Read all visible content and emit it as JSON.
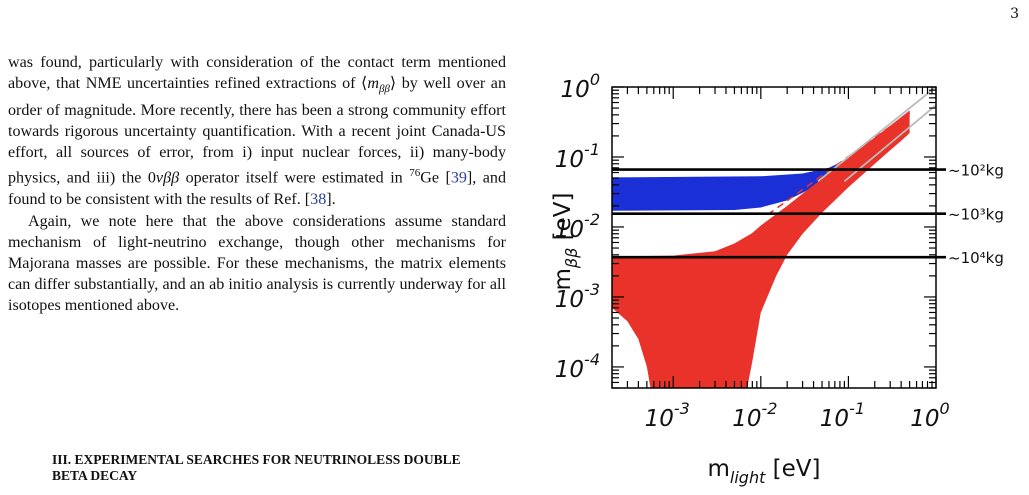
{
  "page_number": "3",
  "paragraphs": [
    {
      "segments": [
        {
          "t": "was found, particularly with consideration of the contact term mentioned above, that NME uncertainties refined extractions of ⟨"
        },
        {
          "t": "m",
          "i": true
        },
        {
          "t": "ββ",
          "sub": true,
          "i": true
        },
        {
          "t": "⟩ by well over an order of magnitude. More recently, there has been a strong community effort towards rigorous uncertainty quantification. With a recent joint Canada-US effort, all sources of error, from i) input nuclear forces, ii) many-body physics, and iii) the 0"
        },
        {
          "t": "νββ",
          "i": true
        },
        {
          "t": "  operator itself were estimated in "
        },
        {
          "t": "76",
          "sup": true
        },
        {
          "t": "Ge ["
        },
        {
          "t": "39",
          "ref": true
        },
        {
          "t": "], and found to be consistent with the results of Ref. ["
        },
        {
          "t": "38",
          "ref": true
        },
        {
          "t": "]."
        }
      ]
    },
    {
      "segments": [
        {
          "t": "Again, we note here that the above considerations assume standard mechanism of light-neutrino exchange, though other mechanisms for Majorana masses are possible. For these mechanisms, the matrix elements can differ substantially, and an ab initio analysis is currently underway for all isotopes mentioned above."
        }
      ]
    }
  ],
  "section_heading": "III.   EXPERIMENTAL SEARCHES FOR NEUTRINOLESS DOUBLE BETA DECAY",
  "chart_data": {
    "type": "area",
    "title": "",
    "xlabel": "m_light [eV]",
    "ylabel": "m_ββ [eV]",
    "x_scale": "log",
    "y_scale": "log",
    "xlim": [
      0.0002,
      1.0
    ],
    "ylim": [
      5e-05,
      1.0
    ],
    "x_tick_labels": [
      {
        "value": 0.001,
        "base": "10",
        "exp": "-3"
      },
      {
        "value": 0.01,
        "base": "10",
        "exp": "-2"
      },
      {
        "value": 0.1,
        "base": "10",
        "exp": "-1"
      },
      {
        "value": 1.0,
        "base": "10",
        "exp": "0"
      }
    ],
    "y_tick_labels": [
      {
        "value": 0.0001,
        "base": "10",
        "exp": "-4"
      },
      {
        "value": 0.001,
        "base": "10",
        "exp": "-3"
      },
      {
        "value": 0.01,
        "base": "10",
        "exp": "-2"
      },
      {
        "value": 0.1,
        "base": "10",
        "exp": "-1"
      },
      {
        "value": 1.0,
        "base": "10",
        "exp": "0"
      }
    ],
    "series": [
      {
        "color": "#1a2fd6",
        "upper": [
          [
            0.0002,
            0.051
          ],
          [
            0.01,
            0.053
          ],
          [
            0.03,
            0.058
          ],
          [
            0.06,
            0.07
          ],
          [
            0.1,
            0.095
          ],
          [
            0.2,
            0.18
          ],
          [
            0.3,
            0.27
          ],
          [
            0.4,
            0.37
          ],
          [
            0.5,
            0.46
          ]
        ],
        "lower": [
          [
            0.0002,
            0.017
          ],
          [
            0.005,
            0.0175
          ],
          [
            0.01,
            0.019
          ],
          [
            0.02,
            0.024
          ],
          [
            0.04,
            0.037
          ],
          [
            0.07,
            0.058
          ],
          [
            0.1,
            0.08
          ],
          [
            0.2,
            0.155
          ],
          [
            0.3,
            0.23
          ],
          [
            0.4,
            0.3
          ],
          [
            0.5,
            0.37
          ]
        ]
      },
      {
        "color": "#e8322a",
        "upper": [
          [
            0.0002,
            0.0038
          ],
          [
            0.001,
            0.0039
          ],
          [
            0.003,
            0.0045
          ],
          [
            0.005,
            0.0058
          ],
          [
            0.008,
            0.0082
          ],
          [
            0.01,
            0.0105
          ],
          [
            0.02,
            0.02
          ],
          [
            0.03,
            0.03
          ],
          [
            0.05,
            0.049
          ],
          [
            0.1,
            0.098
          ],
          [
            0.2,
            0.19
          ],
          [
            0.3,
            0.28
          ],
          [
            0.4,
            0.37
          ],
          [
            0.5,
            0.46
          ]
        ],
        "lower": [
          [
            0.0002,
            0.0007
          ],
          [
            0.0003,
            0.00045
          ],
          [
            0.0004,
            0.00025
          ],
          [
            0.0005,
            0.0001
          ],
          [
            0.00055,
            5e-05
          ],
          [
            0.007,
            5e-05
          ],
          [
            0.008,
            0.00012
          ],
          [
            0.01,
            0.0006
          ],
          [
            0.015,
            0.002
          ],
          [
            0.02,
            0.004
          ],
          [
            0.03,
            0.008
          ],
          [
            0.05,
            0.016
          ],
          [
            0.1,
            0.037
          ],
          [
            0.2,
            0.08
          ],
          [
            0.3,
            0.125
          ],
          [
            0.4,
            0.17
          ],
          [
            0.5,
            0.22
          ]
        ]
      }
    ],
    "reference_lines": [
      {
        "style": "dashed",
        "color": "#e8322a",
        "points": [
          [
            0.012,
            0.015
          ],
          [
            0.5,
            0.43
          ]
        ]
      },
      {
        "style": "solid",
        "color": "#bbbbbb",
        "points": [
          [
            0.045,
            0.045
          ],
          [
            1.0,
            1.0
          ]
        ]
      },
      {
        "style": "solid",
        "color": "#bbbbbb",
        "points": [
          [
            0.09,
            0.045
          ],
          [
            1.0,
            0.55
          ]
        ]
      }
    ],
    "sensitivity_lines": [
      {
        "value": 0.066,
        "label": "~10²kg"
      },
      {
        "value": 0.0155,
        "label": "~10³kg"
      },
      {
        "value": 0.0037,
        "label": "~10⁴kg"
      }
    ]
  }
}
